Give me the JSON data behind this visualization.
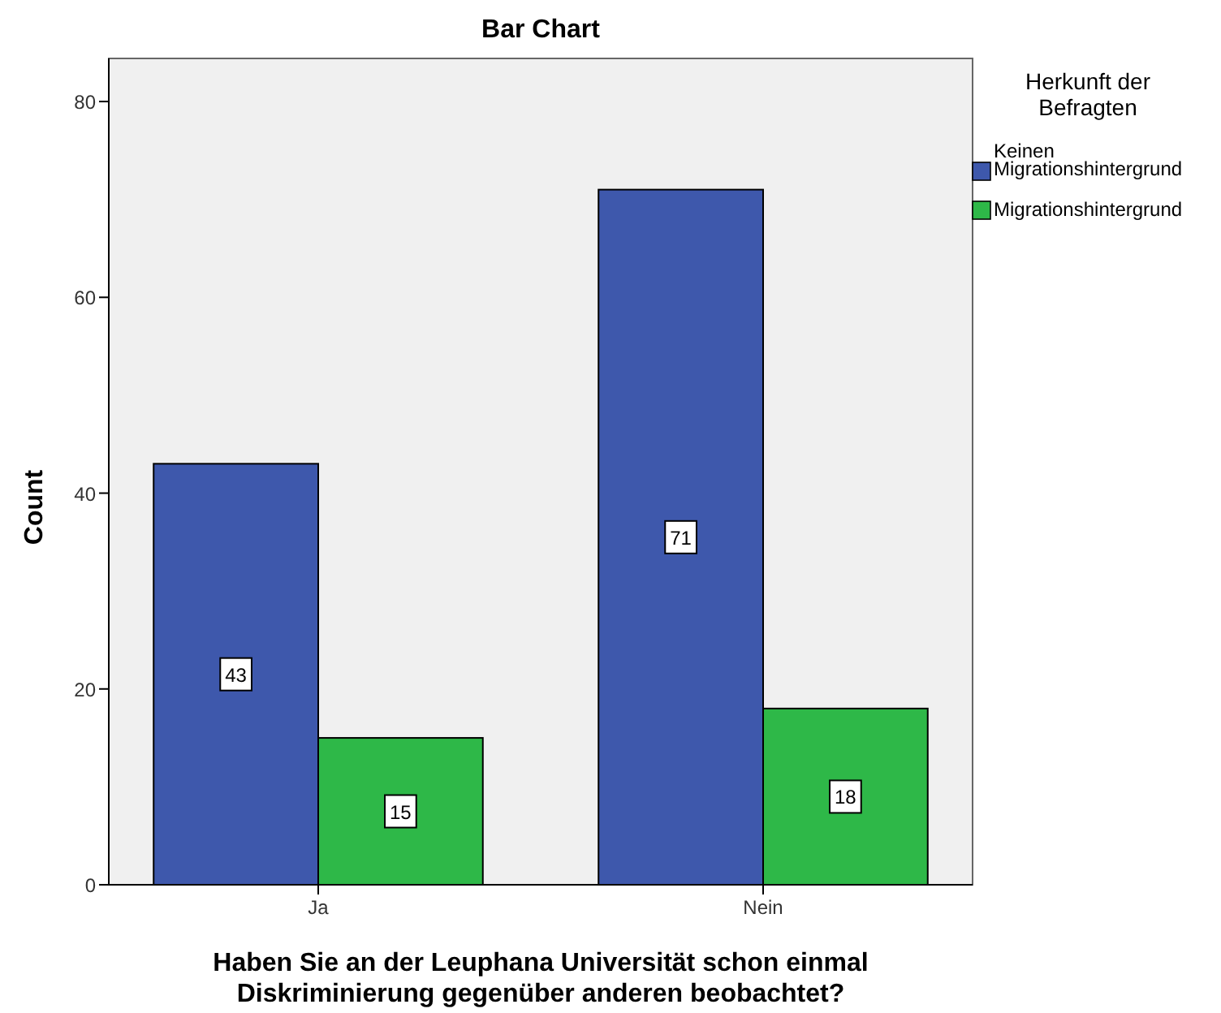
{
  "chart_data": {
    "type": "bar",
    "title": "Bar Chart",
    "xlabel": "Haben Sie an der Leuphana Universität schon einmal Diskriminierung gegenüber anderen beobachtet?",
    "ylabel": "Count",
    "legend_title": "Herkunft der Befragten",
    "categories": [
      "Ja",
      "Nein"
    ],
    "series": [
      {
        "name": "Keinen Migrationshintergrund",
        "color": "#3e58ac",
        "values": [
          43,
          71
        ]
      },
      {
        "name": "Migrationshintergrund",
        "color": "#2eb848",
        "values": [
          15,
          18
        ]
      }
    ],
    "ylim": [
      0,
      84.4
    ],
    "yticks": [
      0,
      20,
      40,
      60,
      80
    ],
    "data_labels": true,
    "legend": "top right"
  }
}
